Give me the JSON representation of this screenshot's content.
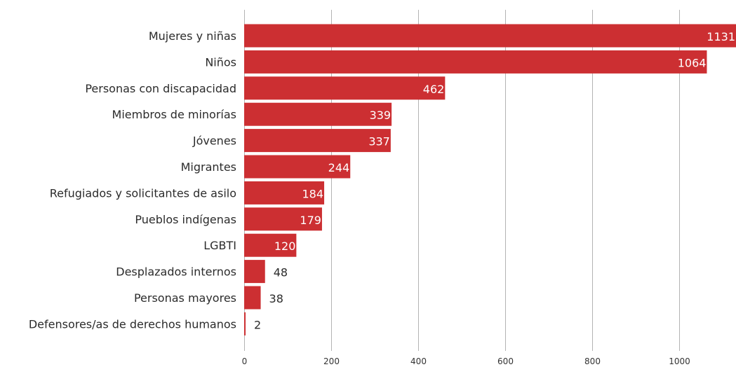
{
  "chart_data": {
    "type": "bar",
    "orientation": "horizontal",
    "title": "",
    "xlabel": "",
    "ylabel": "",
    "categories": [
      "Mujeres y niñas",
      "Niños",
      "Personas con discapacidad",
      "Miembros de minorías",
      "Jóvenes",
      "Migrantes",
      "Refugiados y solicitantes de asilo",
      "Pueblos indígenas",
      "LGBTI",
      "Desplazados internos",
      "Personas mayores",
      "Defensores/as de derechos humanos"
    ],
    "values": [
      1131,
      1064,
      462,
      339,
      337,
      244,
      184,
      179,
      120,
      48,
      38,
      2
    ],
    "xlim": [
      0,
      1131
    ],
    "ticks": [
      0,
      200,
      400,
      600,
      800,
      1000
    ],
    "tick_labels": [
      "0",
      "200",
      "400",
      "600",
      "800",
      "1000"
    ],
    "grid": true,
    "legend": "none",
    "bar_color": "#cc2f32",
    "grid_color": "#b3b3b3",
    "value_label_color_inside": "#ffffff",
    "value_label_color_outside": "#2b2b2b"
  }
}
